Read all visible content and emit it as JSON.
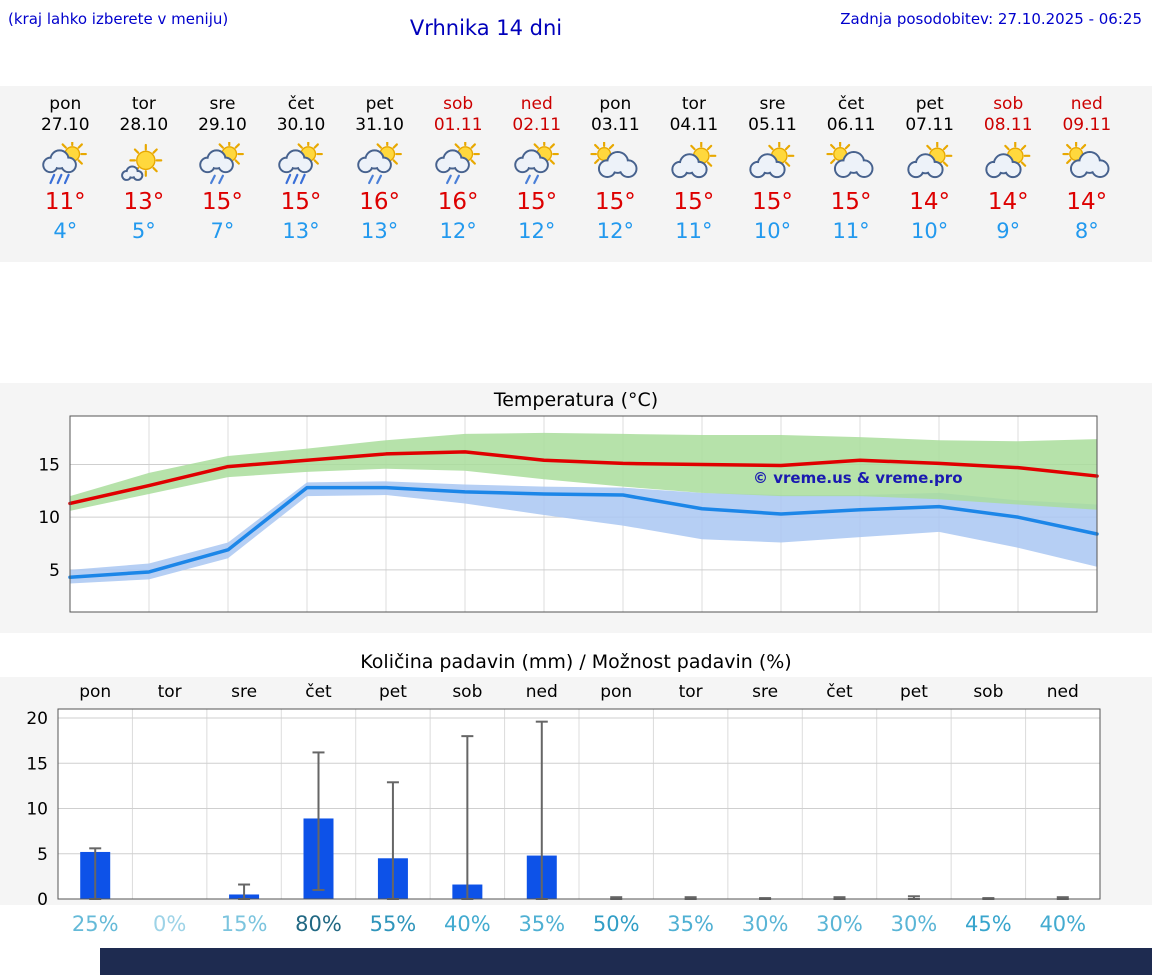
{
  "header": {
    "hint": "(kraj lahko izberete v meniju)",
    "title": "Vrhnika 14 dni",
    "last_update": "Zadnja posodobitev: 27.10.2025 - 06:25"
  },
  "colors": {
    "header_blue": "#0000cc",
    "weekend_red": "#cc0000",
    "tmax_red": "#dd0000",
    "tmin_blue": "#2299ee",
    "bar_blue": "#0d52e8",
    "line_red": "#e00000",
    "line_blue": "#1c86e8",
    "band_green": "#a9dd9b",
    "band_blue": "#a9c7f2",
    "whisker_gray": "#666666",
    "footer_navy": "#1e2b50"
  },
  "forecast": {
    "days": [
      {
        "name": "pon",
        "date": "27.10",
        "weekend": false,
        "icon": "sun-cloud-rain",
        "tmax": "11°",
        "tmin": "4°"
      },
      {
        "name": "tor",
        "date": "28.10",
        "weekend": false,
        "icon": "mostly-sunny",
        "tmax": "13°",
        "tmin": "5°"
      },
      {
        "name": "sre",
        "date": "29.10",
        "weekend": false,
        "icon": "sun-cloud-drizzle",
        "tmax": "15°",
        "tmin": "7°"
      },
      {
        "name": "čet",
        "date": "30.10",
        "weekend": false,
        "icon": "sun-cloud-rain",
        "tmax": "15°",
        "tmin": "13°"
      },
      {
        "name": "pet",
        "date": "31.10",
        "weekend": false,
        "icon": "sun-cloud-drizzle",
        "tmax": "16°",
        "tmin": "13°"
      },
      {
        "name": "sob",
        "date": "01.11",
        "weekend": true,
        "icon": "sun-cloud-drizzle",
        "tmax": "16°",
        "tmin": "12°"
      },
      {
        "name": "ned",
        "date": "02.11",
        "weekend": true,
        "icon": "sun-cloud-drizzle",
        "tmax": "15°",
        "tmin": "12°"
      },
      {
        "name": "pon",
        "date": "03.11",
        "weekend": false,
        "icon": "cloud-sun",
        "tmax": "15°",
        "tmin": "12°"
      },
      {
        "name": "tor",
        "date": "04.11",
        "weekend": false,
        "icon": "sun-cloud",
        "tmax": "15°",
        "tmin": "11°"
      },
      {
        "name": "sre",
        "date": "05.11",
        "weekend": false,
        "icon": "sun-cloud",
        "tmax": "15°",
        "tmin": "10°"
      },
      {
        "name": "čet",
        "date": "06.11",
        "weekend": false,
        "icon": "cloud-sun",
        "tmax": "15°",
        "tmin": "11°"
      },
      {
        "name": "pet",
        "date": "07.11",
        "weekend": false,
        "icon": "sun-cloud",
        "tmax": "14°",
        "tmin": "10°"
      },
      {
        "name": "sob",
        "date": "08.11",
        "weekend": true,
        "icon": "sun-cloud",
        "tmax": "14°",
        "tmin": "9°"
      },
      {
        "name": "ned",
        "date": "09.11",
        "weekend": true,
        "icon": "cloud-sun",
        "tmax": "14°",
        "tmin": "8°"
      }
    ]
  },
  "chart_data": [
    {
      "type": "line",
      "title": "Temperatura (°C)",
      "categories": [
        "pon",
        "tor",
        "sre",
        "čet",
        "pet",
        "sob",
        "ned",
        "pon",
        "tor",
        "sre",
        "čet",
        "pet",
        "sob",
        "ned"
      ],
      "series": [
        {
          "name": "temp-max",
          "color": "#e00000",
          "values": [
            11.3,
            13.0,
            14.8,
            15.4,
            16.0,
            16.2,
            15.4,
            15.1,
            15.0,
            14.9,
            15.4,
            15.1,
            14.7,
            13.9
          ]
        },
        {
          "name": "temp-min",
          "color": "#1c86e8",
          "values": [
            4.3,
            4.8,
            6.9,
            12.8,
            12.8,
            12.4,
            12.2,
            12.1,
            10.8,
            10.3,
            10.7,
            11.0,
            10.0,
            8.4
          ]
        }
      ],
      "bands": [
        {
          "name": "min-range",
          "color": "#a9c7f2",
          "upper": [
            5.0,
            5.6,
            7.6,
            13.3,
            13.4,
            13.1,
            12.9,
            12.8,
            12.3,
            12.1,
            12.1,
            12.3,
            11.6,
            11.2
          ],
          "lower": [
            3.7,
            4.1,
            6.1,
            12.0,
            12.1,
            11.3,
            10.2,
            9.2,
            7.9,
            7.6,
            8.1,
            8.6,
            7.1,
            5.3
          ]
        },
        {
          "name": "max-range",
          "color": "#a9dd9b",
          "upper": [
            12.0,
            14.2,
            15.8,
            16.5,
            17.3,
            17.9,
            18.0,
            17.9,
            17.8,
            17.8,
            17.6,
            17.3,
            17.2,
            17.4
          ],
          "lower": [
            10.6,
            12.2,
            13.8,
            14.3,
            14.6,
            14.4,
            13.6,
            12.9,
            12.3,
            12.0,
            12.0,
            11.7,
            11.2,
            10.7
          ]
        }
      ],
      "ylim": [
        1,
        19.6
      ],
      "yticks": [
        5,
        10,
        15
      ],
      "grid": true,
      "watermark": "© vreme.us & vreme.pro"
    },
    {
      "type": "bar",
      "title": "Količina padavin (mm) / Možnost padavin (%)",
      "categories": [
        "pon",
        "tor",
        "sre",
        "čet",
        "pet",
        "sob",
        "ned",
        "pon",
        "tor",
        "sre",
        "čet",
        "pet",
        "sob",
        "ned"
      ],
      "values": [
        5.2,
        0,
        0.5,
        8.9,
        4.5,
        1.6,
        4.8,
        0,
        0,
        0,
        0,
        0,
        0,
        0
      ],
      "whisker_high": [
        5.6,
        0,
        1.6,
        16.2,
        12.9,
        18.0,
        19.6,
        0.2,
        0.2,
        0.1,
        0.2,
        0.3,
        0.1,
        0.2
      ],
      "whisker_low": [
        0,
        0,
        0,
        1.0,
        0,
        0,
        0,
        0,
        0,
        0,
        0,
        0,
        0,
        0
      ],
      "probabilities": [
        "25%",
        "0%",
        "15%",
        "80%",
        "55%",
        "40%",
        "35%",
        "50%",
        "35%",
        "30%",
        "30%",
        "30%",
        "45%",
        "40%"
      ],
      "ylim": [
        0,
        21
      ],
      "yticks": [
        0,
        5,
        10,
        15,
        20
      ],
      "grid": true
    }
  ]
}
